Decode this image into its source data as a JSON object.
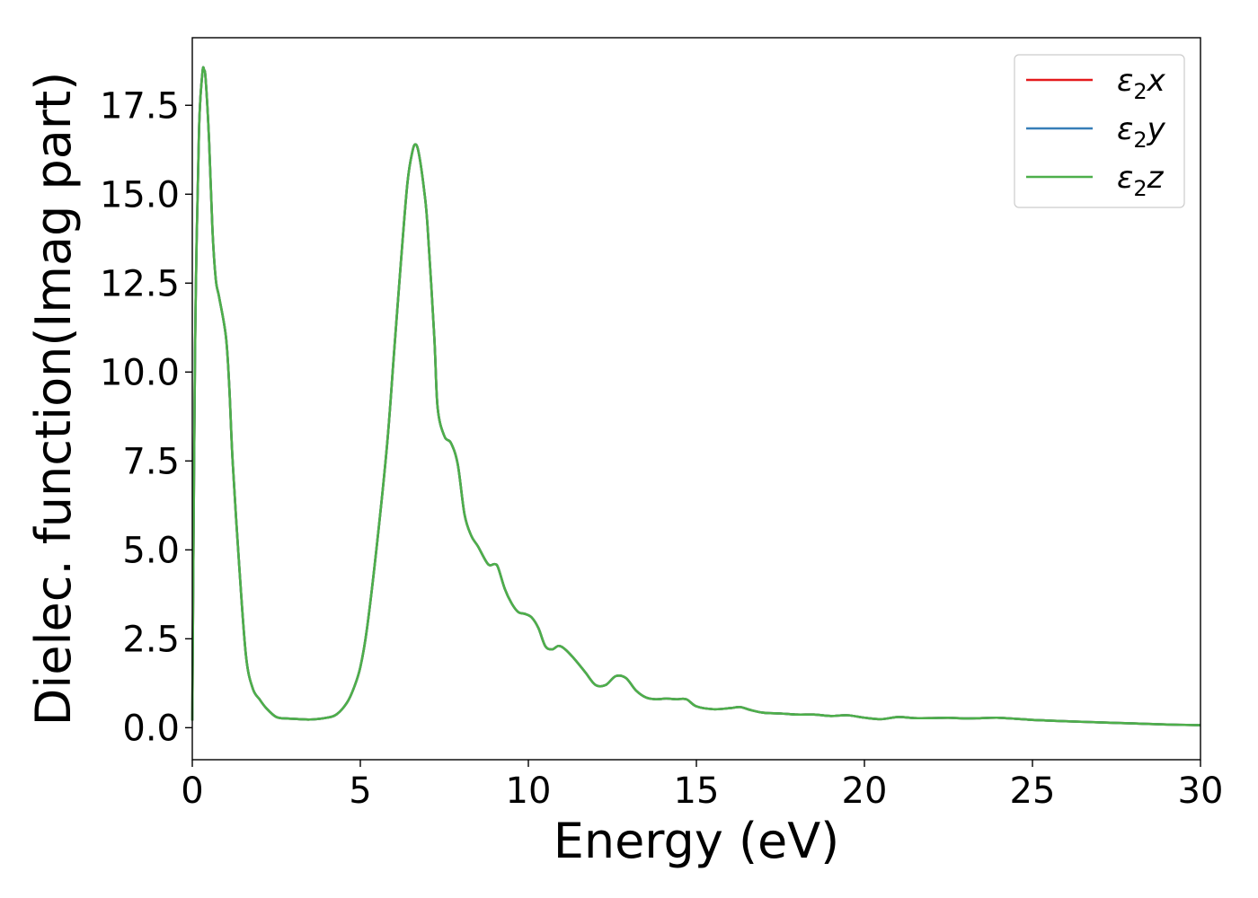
{
  "chart_data": {
    "type": "line",
    "title": "",
    "xlabel": "Energy (eV)",
    "ylabel": "Dielec. function(Imag part)",
    "xlim": [
      0,
      30
    ],
    "ylim": [
      -0.9,
      19.4
    ],
    "xticks": [
      0,
      5,
      10,
      15,
      20,
      25,
      30
    ],
    "xtick_labels": [
      "0",
      "5",
      "10",
      "15",
      "20",
      "25",
      "30"
    ],
    "yticks": [
      0,
      2.5,
      5,
      7.5,
      10,
      12.5,
      15,
      17.5
    ],
    "ytick_labels": [
      "0.0",
      "2.5",
      "5.0",
      "7.5",
      "10.0",
      "12.5",
      "15.0",
      "17.5"
    ],
    "grid": false,
    "legend_position": "top-right",
    "x": [
      0,
      0.05,
      0.1,
      0.2,
      0.3,
      0.35,
      0.4,
      0.5,
      0.6,
      0.7,
      0.8,
      1.0,
      1.1,
      1.2,
      1.4,
      1.6,
      1.8,
      2.0,
      2.2,
      2.5,
      2.8,
      3.0,
      3.5,
      4.0,
      4.3,
      4.6,
      4.8,
      5.0,
      5.2,
      5.5,
      5.8,
      6.0,
      6.2,
      6.4,
      6.55,
      6.65,
      6.75,
      6.9,
      7.0,
      7.2,
      7.3,
      7.5,
      7.7,
      7.9,
      8.1,
      8.3,
      8.5,
      8.8,
      9.0,
      9.1,
      9.3,
      9.5,
      9.7,
      9.9,
      10.1,
      10.3,
      10.5,
      10.7,
      10.9,
      11.1,
      11.4,
      11.7,
      12.0,
      12.3,
      12.6,
      12.9,
      13.2,
      13.5,
      13.8,
      14.1,
      14.4,
      14.7,
      15.0,
      15.5,
      16.0,
      16.3,
      16.6,
      17.0,
      17.5,
      18.0,
      18.5,
      19.0,
      19.5,
      20.0,
      20.5,
      21.0,
      21.5,
      22.0,
      22.5,
      23.0,
      23.5,
      24.0,
      24.5,
      25.0,
      25.5,
      26.0,
      27.0,
      28.0,
      29.0,
      30.0
    ],
    "series": [
      {
        "name": "ε₂x",
        "color": "#e41a1c",
        "values": [
          0.2,
          7.0,
          12.0,
          16.8,
          18.4,
          18.5,
          18.2,
          16.5,
          14.0,
          12.6,
          12.1,
          11.0,
          9.6,
          7.5,
          4.5,
          2.0,
          1.1,
          0.8,
          0.55,
          0.3,
          0.26,
          0.25,
          0.23,
          0.28,
          0.38,
          0.7,
          1.1,
          1.7,
          2.8,
          5.2,
          8.0,
          10.5,
          13.0,
          15.3,
          16.2,
          16.4,
          16.1,
          15.1,
          14.1,
          11.0,
          9.0,
          8.2,
          8.0,
          7.4,
          6.0,
          5.4,
          5.1,
          4.6,
          4.6,
          4.5,
          3.9,
          3.5,
          3.25,
          3.2,
          3.1,
          2.8,
          2.3,
          2.2,
          2.3,
          2.2,
          1.9,
          1.55,
          1.2,
          1.2,
          1.45,
          1.4,
          1.05,
          0.85,
          0.8,
          0.82,
          0.8,
          0.8,
          0.6,
          0.52,
          0.55,
          0.58,
          0.5,
          0.42,
          0.4,
          0.37,
          0.37,
          0.33,
          0.35,
          0.28,
          0.24,
          0.3,
          0.27,
          0.27,
          0.28,
          0.26,
          0.27,
          0.28,
          0.25,
          0.22,
          0.2,
          0.18,
          0.15,
          0.12,
          0.09,
          0.07
        ]
      },
      {
        "name": "ε₂y",
        "color": "#377eb8",
        "values": [
          0.2,
          7.0,
          12.0,
          16.8,
          18.4,
          18.5,
          18.2,
          16.5,
          14.0,
          12.6,
          12.1,
          11.0,
          9.6,
          7.5,
          4.5,
          2.0,
          1.1,
          0.8,
          0.55,
          0.3,
          0.26,
          0.25,
          0.23,
          0.28,
          0.38,
          0.7,
          1.1,
          1.7,
          2.8,
          5.2,
          8.0,
          10.5,
          13.0,
          15.3,
          16.2,
          16.4,
          16.1,
          15.1,
          14.1,
          11.0,
          9.0,
          8.2,
          8.0,
          7.4,
          6.0,
          5.4,
          5.1,
          4.6,
          4.6,
          4.5,
          3.9,
          3.5,
          3.25,
          3.2,
          3.1,
          2.8,
          2.3,
          2.2,
          2.3,
          2.2,
          1.9,
          1.55,
          1.2,
          1.2,
          1.45,
          1.4,
          1.05,
          0.85,
          0.8,
          0.82,
          0.8,
          0.8,
          0.6,
          0.52,
          0.55,
          0.58,
          0.5,
          0.42,
          0.4,
          0.37,
          0.37,
          0.33,
          0.35,
          0.28,
          0.24,
          0.3,
          0.27,
          0.27,
          0.28,
          0.26,
          0.27,
          0.28,
          0.25,
          0.22,
          0.2,
          0.18,
          0.15,
          0.12,
          0.09,
          0.07
        ]
      },
      {
        "name": "ε₂z",
        "color": "#4daf4a",
        "values": [
          0.2,
          7.0,
          12.0,
          16.8,
          18.4,
          18.5,
          18.2,
          16.5,
          14.0,
          12.6,
          12.1,
          11.0,
          9.6,
          7.5,
          4.5,
          2.0,
          1.1,
          0.8,
          0.55,
          0.3,
          0.26,
          0.25,
          0.23,
          0.28,
          0.38,
          0.7,
          1.1,
          1.7,
          2.8,
          5.2,
          8.0,
          10.5,
          13.0,
          15.3,
          16.2,
          16.4,
          16.1,
          15.1,
          14.1,
          11.0,
          9.0,
          8.2,
          8.0,
          7.4,
          6.0,
          5.4,
          5.1,
          4.6,
          4.6,
          4.5,
          3.9,
          3.5,
          3.25,
          3.2,
          3.1,
          2.8,
          2.3,
          2.2,
          2.3,
          2.2,
          1.9,
          1.55,
          1.2,
          1.2,
          1.45,
          1.4,
          1.05,
          0.85,
          0.8,
          0.82,
          0.8,
          0.8,
          0.6,
          0.52,
          0.55,
          0.58,
          0.5,
          0.42,
          0.4,
          0.37,
          0.37,
          0.33,
          0.35,
          0.28,
          0.24,
          0.3,
          0.27,
          0.27,
          0.28,
          0.26,
          0.27,
          0.28,
          0.25,
          0.22,
          0.2,
          0.18,
          0.15,
          0.12,
          0.09,
          0.07
        ]
      }
    ]
  },
  "legend": {
    "items": [
      {
        "prefix": "ε",
        "sub": "2",
        "suffix": "x"
      },
      {
        "prefix": "ε",
        "sub": "2",
        "suffix": "y"
      },
      {
        "prefix": "ε",
        "sub": "2",
        "suffix": "z"
      }
    ]
  }
}
